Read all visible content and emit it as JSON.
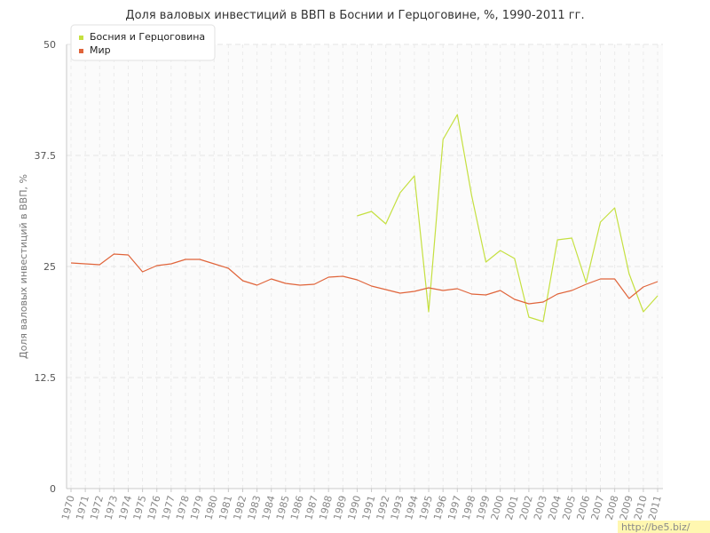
{
  "chart_data": {
    "type": "line",
    "title": "Доля валовых инвестиций в ВВП в Боснии и Герцоговине, %, 1990-2011 гг.",
    "xlabel": "",
    "ylabel": "Доля валовых инвестиций в ВВП, %",
    "ylim": [
      0,
      50
    ],
    "yticks": [
      0,
      12.5,
      25,
      37.5,
      50
    ],
    "ytick_labels": [
      "0",
      "12.5",
      "25",
      "37.5",
      "50"
    ],
    "x": [
      "1970",
      "1971",
      "1972",
      "1973",
      "1974",
      "1975",
      "1976",
      "1977",
      "1978",
      "1979",
      "1980",
      "1981",
      "1982",
      "1983",
      "1984",
      "1985",
      "1986",
      "1987",
      "1988",
      "1989",
      "1990",
      "1991",
      "1992",
      "1993",
      "1994",
      "1995",
      "1996",
      "1997",
      "1998",
      "1999",
      "2000",
      "2001",
      "2002",
      "2003",
      "2004",
      "2005",
      "2006",
      "2007",
      "2008",
      "2009",
      "2010",
      "2011"
    ],
    "grid": true,
    "legend_position": "top-left",
    "series": [
      {
        "name": "Босния и Герцоговина",
        "color": "#c5e040",
        "values": [
          null,
          null,
          null,
          null,
          null,
          null,
          null,
          null,
          null,
          null,
          null,
          null,
          null,
          null,
          null,
          null,
          null,
          null,
          null,
          null,
          30.7,
          31.2,
          29.8,
          33.3,
          35.2,
          19.9,
          39.3,
          42.1,
          33.0,
          25.5,
          26.8,
          25.9,
          19.3,
          18.8,
          28.0,
          28.2,
          23.2,
          30.0,
          31.6,
          24.2,
          19.9,
          21.7
        ]
      },
      {
        "name": "Мир",
        "color": "#e0643a",
        "values": [
          25.4,
          25.3,
          25.2,
          26.4,
          26.3,
          24.4,
          25.1,
          25.3,
          25.8,
          25.8,
          25.3,
          24.8,
          23.4,
          22.9,
          23.6,
          23.1,
          22.9,
          23.0,
          23.8,
          23.9,
          23.5,
          22.8,
          22.4,
          22.0,
          22.2,
          22.6,
          22.3,
          22.5,
          21.9,
          21.8,
          22.3,
          21.3,
          20.8,
          21.0,
          21.9,
          22.3,
          23.0,
          23.6,
          23.6,
          21.4,
          22.7,
          23.3
        ]
      }
    ]
  },
  "watermark": "http://be5.biz/"
}
